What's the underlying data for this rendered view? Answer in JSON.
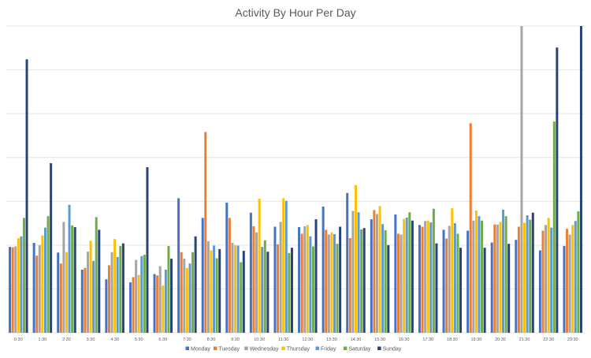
{
  "chart_data": {
    "type": "bar",
    "title": "Activity By Hour Per Day",
    "xlabel": "",
    "ylabel": "",
    "ylim": [
      0,
      7
    ],
    "grid": true,
    "y_tick_labels_shown": false,
    "legend_placement": "bottom",
    "categories": [
      "0:30",
      "1:30",
      "2:30",
      "3:30",
      "4:30",
      "5:30",
      "6:30",
      "7:30",
      "8:30",
      "9:30",
      "10:30",
      "11:30",
      "12:30",
      "13:30",
      "14:30",
      "15:30",
      "16:30",
      "17:30",
      "18:30",
      "19:30",
      "20:30",
      "21:30",
      "22:30",
      "23:30"
    ],
    "series": [
      {
        "name": "Monday",
        "color": "#4472C4",
        "values": [
          1.96,
          2.05,
          1.83,
          1.44,
          1.22,
          1.15,
          1.34,
          3.07,
          2.62,
          2.97,
          2.74,
          2.42,
          2.41,
          2.88,
          3.19,
          2.59,
          2.7,
          2.46,
          2.35,
          2.33,
          2.06,
          2.12,
          1.88,
          1.98
        ]
      },
      {
        "name": "Tuesday",
        "color": "#ED7D31",
        "values": [
          1.95,
          1.76,
          1.58,
          1.48,
          1.54,
          1.27,
          1.31,
          1.84,
          4.58,
          2.62,
          2.43,
          2.02,
          2.26,
          2.35,
          2.16,
          2.8,
          2.26,
          2.42,
          2.15,
          4.78,
          2.47,
          2.42,
          2.33,
          2.37
        ]
      },
      {
        "name": "Wednesday",
        "color": "#A5A5A5",
        "values": [
          1.97,
          2.0,
          2.53,
          1.85,
          1.84,
          1.66,
          1.52,
          1.69,
          2.09,
          2.05,
          2.29,
          2.53,
          2.43,
          2.24,
          2.78,
          2.71,
          2.24,
          2.55,
          2.44,
          2.56,
          2.47,
          7.0,
          2.46,
          2.24
        ]
      },
      {
        "name": "Thursday",
        "color": "#FFC000",
        "values": [
          2.16,
          2.22,
          1.84,
          2.1,
          2.14,
          1.32,
          1.08,
          1.48,
          1.88,
          2.0,
          3.06,
          3.07,
          2.46,
          2.29,
          3.37,
          2.89,
          2.6,
          2.56,
          2.84,
          2.79,
          2.53,
          2.51,
          2.62,
          2.46
        ]
      },
      {
        "name": "Friday",
        "color": "#5B9BD5",
        "values": [
          2.2,
          2.4,
          2.92,
          1.64,
          1.73,
          1.75,
          1.44,
          1.58,
          1.99,
          1.99,
          1.96,
          3.01,
          2.2,
          2.25,
          2.75,
          2.48,
          2.63,
          2.52,
          2.5,
          2.66,
          2.81,
          2.68,
          2.4,
          2.55
        ]
      },
      {
        "name": "Saturday",
        "color": "#70AD47",
        "values": [
          2.62,
          2.66,
          2.45,
          2.64,
          1.98,
          1.78,
          1.98,
          1.84,
          1.7,
          1.61,
          2.11,
          1.82,
          1.97,
          2.03,
          2.36,
          2.34,
          2.75,
          2.83,
          2.26,
          2.56,
          2.66,
          2.58,
          4.82,
          2.77
        ]
      },
      {
        "name": "Sunday",
        "color": "#264478",
        "values": [
          6.24,
          3.87,
          2.41,
          2.35,
          2.04,
          3.78,
          1.69,
          2.2,
          1.91,
          1.87,
          1.85,
          1.94,
          2.59,
          2.42,
          2.39,
          2.0,
          2.56,
          2.04,
          1.94,
          1.94,
          2.03,
          2.74,
          6.51,
          7.0
        ]
      }
    ]
  }
}
